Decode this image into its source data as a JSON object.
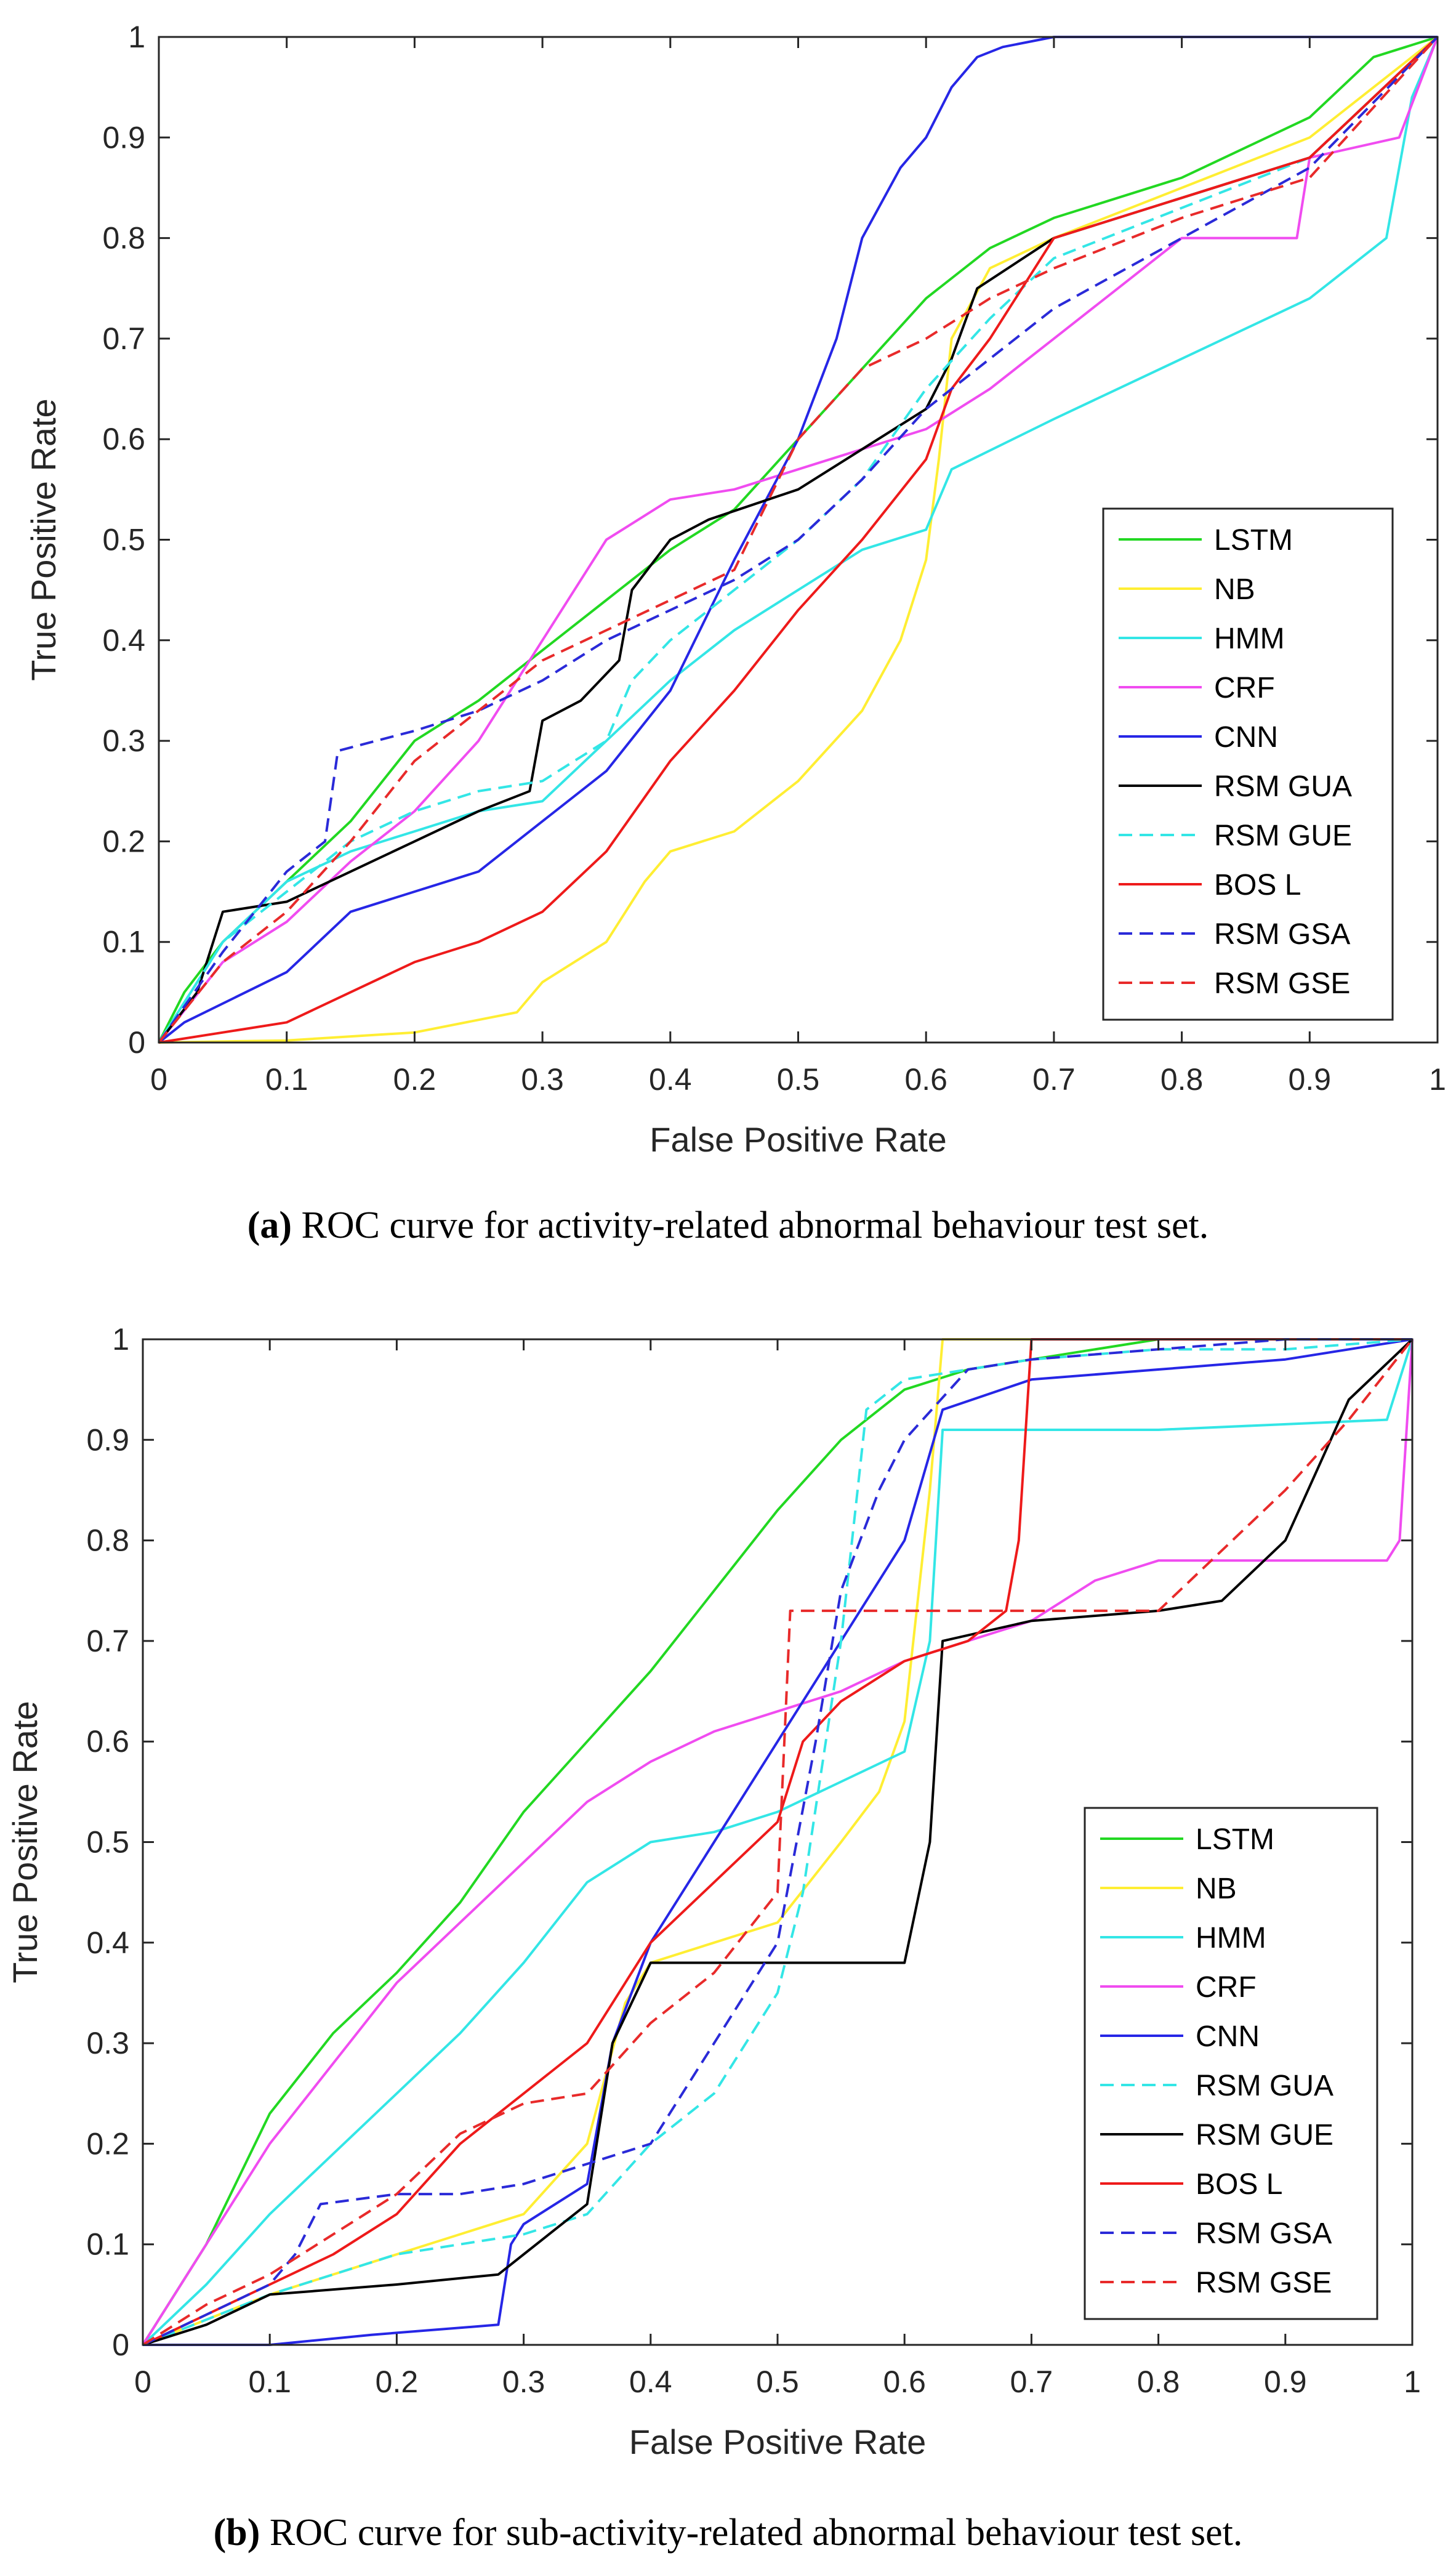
{
  "colors": {
    "LSTM": "#22d822",
    "NB": "#ffee33",
    "HMM": "#33e6e6",
    "CRF": "#f04cf0",
    "CNN": "#2626e6",
    "BLACK": "#000000",
    "BOS_L": "#ee1a1a",
    "RSM_GSA": "#2a2ad8",
    "RSM_GSE": "#e82a2a"
  },
  "chart_data": [
    {
      "type": "line",
      "panel_letter": "(a)",
      "caption": "ROC curve for activity-related abnormal behaviour test set.",
      "xlabel": "False Positive Rate",
      "ylabel": "True Positive Rate",
      "xlim": [
        0,
        1
      ],
      "ylim": [
        0,
        1
      ],
      "xticks": [
        "0",
        "0.1",
        "0.2",
        "0.3",
        "0.4",
        "0.5",
        "0.6",
        "0.7",
        "0.8",
        "0.9",
        "1"
      ],
      "yticks": [
        "0",
        "0.1",
        "0.2",
        "0.3",
        "0.4",
        "0.5",
        "0.6",
        "0.7",
        "0.8",
        "0.9",
        "1"
      ],
      "legend_position": "lower-right",
      "series": [
        {
          "name": "LSTM",
          "color_key": "LSTM",
          "dashed": false,
          "x": [
            0,
            0.02,
            0.05,
            0.1,
            0.15,
            0.2,
            0.25,
            0.3,
            0.35,
            0.4,
            0.45,
            0.5,
            0.55,
            0.6,
            0.65,
            0.7,
            0.8,
            0.9,
            0.95,
            1
          ],
          "y": [
            0,
            0.05,
            0.1,
            0.16,
            0.22,
            0.3,
            0.34,
            0.39,
            0.44,
            0.49,
            0.53,
            0.6,
            0.67,
            0.74,
            0.79,
            0.82,
            0.86,
            0.92,
            0.98,
            1
          ]
        },
        {
          "name": "NB",
          "color_key": "NB",
          "dashed": false,
          "x": [
            0,
            0.1,
            0.2,
            0.28,
            0.3,
            0.35,
            0.38,
            0.4,
            0.45,
            0.5,
            0.55,
            0.58,
            0.6,
            0.61,
            0.62,
            0.65,
            0.7,
            0.8,
            0.9,
            1
          ],
          "y": [
            0,
            0.002,
            0.01,
            0.03,
            0.06,
            0.1,
            0.16,
            0.19,
            0.21,
            0.26,
            0.33,
            0.4,
            0.48,
            0.58,
            0.7,
            0.77,
            0.8,
            0.85,
            0.9,
            1
          ]
        },
        {
          "name": "HMM",
          "color_key": "HMM",
          "dashed": false,
          "x": [
            0,
            0.05,
            0.1,
            0.15,
            0.2,
            0.25,
            0.3,
            0.35,
            0.4,
            0.45,
            0.5,
            0.55,
            0.6,
            0.62,
            0.7,
            0.8,
            0.9,
            0.96,
            0.98,
            1
          ],
          "y": [
            0,
            0.1,
            0.16,
            0.19,
            0.21,
            0.23,
            0.24,
            0.3,
            0.36,
            0.41,
            0.45,
            0.49,
            0.51,
            0.57,
            0.62,
            0.68,
            0.74,
            0.8,
            0.94,
            1
          ]
        },
        {
          "name": "CRF",
          "color_key": "CRF",
          "dashed": false,
          "x": [
            0,
            0.05,
            0.1,
            0.15,
            0.2,
            0.25,
            0.3,
            0.35,
            0.4,
            0.45,
            0.5,
            0.55,
            0.6,
            0.65,
            0.7,
            0.75,
            0.8,
            0.89,
            0.9,
            0.97,
            1
          ],
          "y": [
            0,
            0.08,
            0.12,
            0.18,
            0.23,
            0.3,
            0.4,
            0.5,
            0.54,
            0.55,
            0.57,
            0.59,
            0.61,
            0.65,
            0.7,
            0.75,
            0.8,
            0.8,
            0.88,
            0.9,
            1
          ]
        },
        {
          "name": "CNN",
          "color_key": "CNN",
          "dashed": false,
          "x": [
            0,
            0.02,
            0.1,
            0.15,
            0.2,
            0.25,
            0.3,
            0.35,
            0.4,
            0.45,
            0.5,
            0.53,
            0.55,
            0.58,
            0.6,
            0.62,
            0.64,
            0.66,
            0.7,
            1
          ],
          "y": [
            0,
            0.02,
            0.07,
            0.13,
            0.15,
            0.17,
            0.22,
            0.27,
            0.35,
            0.48,
            0.6,
            0.7,
            0.8,
            0.87,
            0.9,
            0.95,
            0.98,
            0.99,
            1,
            1
          ]
        },
        {
          "name": "RSM GUA",
          "color_key": "BLACK",
          "dashed": false,
          "x": [
            0,
            0.03,
            0.05,
            0.1,
            0.15,
            0.2,
            0.25,
            0.29,
            0.3,
            0.33,
            0.36,
            0.37,
            0.4,
            0.43,
            0.5,
            0.55,
            0.6,
            0.62,
            0.64,
            0.7,
            0.8,
            0.9,
            1
          ],
          "y": [
            0,
            0.05,
            0.13,
            0.14,
            0.17,
            0.2,
            0.23,
            0.25,
            0.32,
            0.34,
            0.38,
            0.45,
            0.5,
            0.52,
            0.55,
            0.59,
            0.63,
            0.68,
            0.75,
            0.8,
            0.84,
            0.88,
            1
          ]
        },
        {
          "name": "RSM GUE",
          "color_key": "HMM",
          "dashed": true,
          "x": [
            0,
            0.05,
            0.1,
            0.15,
            0.2,
            0.25,
            0.3,
            0.35,
            0.37,
            0.4,
            0.45,
            0.5,
            0.55,
            0.6,
            0.65,
            0.7,
            0.8,
            0.9,
            1
          ],
          "y": [
            0,
            0.1,
            0.15,
            0.2,
            0.23,
            0.25,
            0.26,
            0.3,
            0.36,
            0.4,
            0.45,
            0.5,
            0.56,
            0.65,
            0.72,
            0.78,
            0.83,
            0.88,
            1
          ]
        },
        {
          "name": "BOS L",
          "color_key": "BOS_L",
          "dashed": false,
          "x": [
            0,
            0.05,
            0.1,
            0.15,
            0.2,
            0.25,
            0.3,
            0.35,
            0.4,
            0.45,
            0.5,
            0.55,
            0.6,
            0.62,
            0.65,
            0.68,
            0.7,
            0.8,
            0.9,
            1
          ],
          "y": [
            0,
            0.01,
            0.02,
            0.05,
            0.08,
            0.1,
            0.13,
            0.19,
            0.28,
            0.35,
            0.43,
            0.5,
            0.58,
            0.65,
            0.7,
            0.76,
            0.8,
            0.84,
            0.88,
            1
          ]
        },
        {
          "name": "RSM GSA",
          "color_key": "RSM_GSA",
          "dashed": true,
          "x": [
            0,
            0.05,
            0.1,
            0.13,
            0.14,
            0.2,
            0.25,
            0.3,
            0.35,
            0.4,
            0.45,
            0.5,
            0.55,
            0.6,
            0.65,
            0.7,
            0.8,
            0.9,
            1
          ],
          "y": [
            0,
            0.09,
            0.17,
            0.2,
            0.29,
            0.31,
            0.33,
            0.36,
            0.4,
            0.43,
            0.46,
            0.5,
            0.56,
            0.63,
            0.68,
            0.73,
            0.8,
            0.87,
            1
          ]
        },
        {
          "name": "RSM GSE",
          "color_key": "RSM_GSE",
          "dashed": true,
          "x": [
            0,
            0.05,
            0.1,
            0.15,
            0.2,
            0.25,
            0.3,
            0.35,
            0.4,
            0.45,
            0.5,
            0.55,
            0.6,
            0.65,
            0.7,
            0.8,
            0.9,
            1
          ],
          "y": [
            0,
            0.08,
            0.13,
            0.2,
            0.28,
            0.33,
            0.38,
            0.41,
            0.44,
            0.47,
            0.6,
            0.67,
            0.7,
            0.74,
            0.77,
            0.82,
            0.86,
            1
          ]
        }
      ]
    },
    {
      "type": "line",
      "panel_letter": "(b)",
      "caption": "ROC curve for sub-activity-related abnormal behaviour test set.",
      "xlabel": "False Positive Rate",
      "ylabel": "True Positive Rate",
      "xlim": [
        0,
        1
      ],
      "ylim": [
        0,
        1
      ],
      "xticks": [
        "0",
        "0.1",
        "0.2",
        "0.3",
        "0.4",
        "0.5",
        "0.6",
        "0.7",
        "0.8",
        "0.9",
        "1"
      ],
      "yticks": [
        "0",
        "0.1",
        "0.2",
        "0.3",
        "0.4",
        "0.5",
        "0.6",
        "0.7",
        "0.8",
        "0.9",
        "1"
      ],
      "legend_position": "lower-right",
      "series": [
        {
          "name": "LSTM",
          "color_key": "LSTM",
          "dashed": false,
          "x": [
            0,
            0.05,
            0.1,
            0.15,
            0.2,
            0.25,
            0.3,
            0.35,
            0.4,
            0.45,
            0.5,
            0.55,
            0.6,
            0.65,
            0.7,
            0.8,
            1
          ],
          "y": [
            0,
            0.1,
            0.23,
            0.31,
            0.37,
            0.44,
            0.53,
            0.6,
            0.67,
            0.75,
            0.83,
            0.9,
            0.95,
            0.97,
            0.98,
            1,
            1
          ]
        },
        {
          "name": "NB",
          "color_key": "NB",
          "dashed": false,
          "x": [
            0,
            0.1,
            0.2,
            0.3,
            0.35,
            0.38,
            0.4,
            0.45,
            0.5,
            0.55,
            0.58,
            0.6,
            0.62,
            0.63,
            1
          ],
          "y": [
            0,
            0.05,
            0.09,
            0.13,
            0.2,
            0.34,
            0.38,
            0.4,
            0.42,
            0.5,
            0.55,
            0.62,
            0.85,
            1,
            1
          ]
        },
        {
          "name": "HMM",
          "color_key": "HMM",
          "dashed": false,
          "x": [
            0,
            0.05,
            0.1,
            0.15,
            0.2,
            0.25,
            0.3,
            0.35,
            0.4,
            0.45,
            0.5,
            0.55,
            0.6,
            0.62,
            0.63,
            0.7,
            0.8,
            0.98,
            1
          ],
          "y": [
            0,
            0.06,
            0.13,
            0.19,
            0.25,
            0.31,
            0.38,
            0.46,
            0.5,
            0.51,
            0.53,
            0.56,
            0.59,
            0.7,
            0.91,
            0.91,
            0.91,
            0.92,
            1
          ]
        },
        {
          "name": "CRF",
          "color_key": "CRF",
          "dashed": false,
          "x": [
            0,
            0.05,
            0.1,
            0.15,
            0.2,
            0.25,
            0.3,
            0.35,
            0.4,
            0.45,
            0.5,
            0.55,
            0.6,
            0.65,
            0.7,
            0.75,
            0.8,
            0.98,
            0.99,
            1
          ],
          "y": [
            0,
            0.1,
            0.2,
            0.28,
            0.36,
            0.42,
            0.48,
            0.54,
            0.58,
            0.61,
            0.63,
            0.65,
            0.68,
            0.7,
            0.72,
            0.76,
            0.78,
            0.78,
            0.8,
            1
          ]
        },
        {
          "name": "CNN",
          "color_key": "CNN",
          "dashed": false,
          "x": [
            0,
            0.1,
            0.18,
            0.28,
            0.29,
            0.3,
            0.35,
            0.37,
            0.4,
            0.45,
            0.5,
            0.55,
            0.6,
            0.63,
            0.7,
            0.8,
            0.9,
            1
          ],
          "y": [
            0,
            0,
            0.01,
            0.02,
            0.1,
            0.12,
            0.16,
            0.3,
            0.4,
            0.5,
            0.6,
            0.7,
            0.8,
            0.93,
            0.96,
            0.97,
            0.98,
            1
          ]
        },
        {
          "name": "RSM GUA",
          "color_key": "HMM",
          "dashed": true,
          "x": [
            0,
            0.1,
            0.2,
            0.3,
            0.35,
            0.4,
            0.45,
            0.5,
            0.52,
            0.55,
            0.57,
            0.6,
            0.7,
            0.8,
            0.9,
            1
          ],
          "y": [
            0,
            0.05,
            0.09,
            0.11,
            0.13,
            0.2,
            0.25,
            0.35,
            0.45,
            0.7,
            0.93,
            0.96,
            0.98,
            0.99,
            0.99,
            1
          ]
        },
        {
          "name": "RSM GUE",
          "color_key": "BLACK",
          "dashed": false,
          "x": [
            0,
            0.05,
            0.1,
            0.2,
            0.28,
            0.3,
            0.35,
            0.37,
            0.4,
            0.5,
            0.6,
            0.62,
            0.63,
            0.7,
            0.8,
            0.85,
            0.9,
            0.95,
            1
          ],
          "y": [
            0,
            0.02,
            0.05,
            0.06,
            0.07,
            0.09,
            0.14,
            0.3,
            0.38,
            0.38,
            0.38,
            0.5,
            0.7,
            0.72,
            0.73,
            0.74,
            0.8,
            0.94,
            1
          ]
        },
        {
          "name": "BOS L",
          "color_key": "BOS_L",
          "dashed": false,
          "x": [
            0,
            0.05,
            0.1,
            0.15,
            0.2,
            0.25,
            0.3,
            0.35,
            0.4,
            0.45,
            0.5,
            0.52,
            0.55,
            0.6,
            0.65,
            0.68,
            0.69,
            0.7,
            0.8,
            1
          ],
          "y": [
            0,
            0.03,
            0.06,
            0.09,
            0.13,
            0.2,
            0.25,
            0.3,
            0.4,
            0.46,
            0.52,
            0.6,
            0.64,
            0.68,
            0.7,
            0.73,
            0.8,
            1,
            1,
            1
          ]
        },
        {
          "name": "RSM GSA",
          "color_key": "RSM_GSA",
          "dashed": true,
          "x": [
            0,
            0.05,
            0.1,
            0.12,
            0.14,
            0.2,
            0.25,
            0.3,
            0.35,
            0.4,
            0.45,
            0.5,
            0.53,
            0.55,
            0.58,
            0.6,
            0.65,
            0.7,
            0.8,
            0.9,
            1
          ],
          "y": [
            0,
            0.03,
            0.06,
            0.09,
            0.14,
            0.15,
            0.15,
            0.16,
            0.18,
            0.2,
            0.3,
            0.4,
            0.6,
            0.75,
            0.85,
            0.9,
            0.97,
            0.98,
            0.99,
            1,
            1
          ]
        },
        {
          "name": "RSM GSE",
          "color_key": "RSM_GSE",
          "dashed": true,
          "x": [
            0,
            0.05,
            0.1,
            0.15,
            0.2,
            0.25,
            0.3,
            0.35,
            0.4,
            0.45,
            0.5,
            0.51,
            0.55,
            0.6,
            0.7,
            0.8,
            0.85,
            0.9,
            0.95,
            1
          ],
          "y": [
            0,
            0.04,
            0.07,
            0.11,
            0.15,
            0.21,
            0.24,
            0.25,
            0.32,
            0.37,
            0.45,
            0.73,
            0.73,
            0.73,
            0.73,
            0.73,
            0.79,
            0.85,
            0.92,
            1
          ]
        }
      ]
    }
  ]
}
